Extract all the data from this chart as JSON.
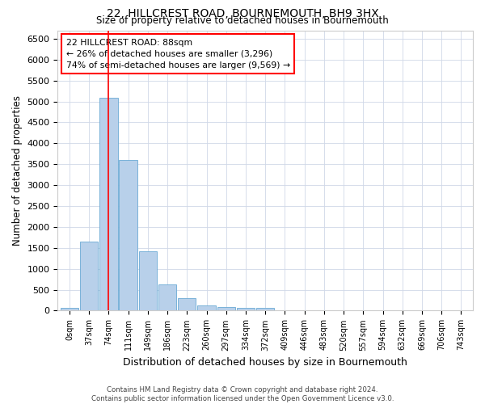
{
  "title": "22, HILLCREST ROAD, BOURNEMOUTH, BH9 3HX",
  "subtitle": "Size of property relative to detached houses in Bournemouth",
  "xlabel": "Distribution of detached houses by size in Bournemouth",
  "ylabel": "Number of detached properties",
  "footer_line1": "Contains HM Land Registry data © Crown copyright and database right 2024.",
  "footer_line2": "Contains public sector information licensed under the Open Government Licence v3.0.",
  "bar_labels": [
    "0sqm",
    "37sqm",
    "74sqm",
    "111sqm",
    "149sqm",
    "186sqm",
    "223sqm",
    "260sqm",
    "297sqm",
    "334sqm",
    "372sqm",
    "409sqm",
    "446sqm",
    "483sqm",
    "520sqm",
    "557sqm",
    "594sqm",
    "632sqm",
    "669sqm",
    "706sqm",
    "743sqm"
  ],
  "bar_values": [
    70,
    1650,
    5080,
    3600,
    1410,
    620,
    290,
    130,
    95,
    65,
    60,
    0,
    0,
    0,
    0,
    0,
    0,
    0,
    0,
    0,
    0
  ],
  "bar_color": "#b8d0ea",
  "bar_edge_color": "#6aaad4",
  "ylim": [
    0,
    6700
  ],
  "yticks": [
    0,
    500,
    1000,
    1500,
    2000,
    2500,
    3000,
    3500,
    4000,
    4500,
    5000,
    5500,
    6000,
    6500
  ],
  "vline_x": 2.0,
  "vline_color": "red",
  "annotation_title": "22 HILLCREST ROAD: 88sqm",
  "annotation_line1": "← 26% of detached houses are smaller (3,296)",
  "annotation_line2": "74% of semi-detached houses are larger (9,569) →",
  "bg_color": "#ffffff",
  "grid_color": "#d0d8e8"
}
